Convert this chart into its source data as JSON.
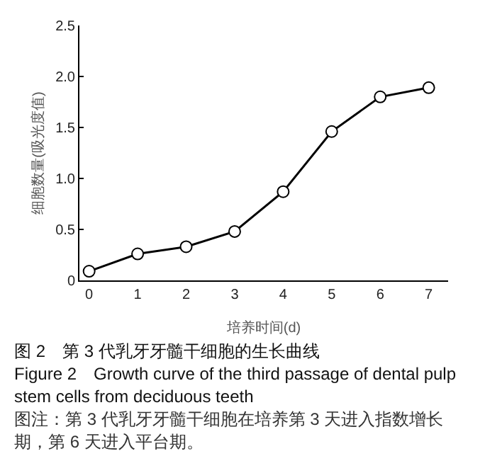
{
  "chart_data": {
    "type": "line",
    "title": "图 2　第 3 代乳牙牙髓干细胞的生长曲线",
    "subtitle": "Figure 2　Growth curve of the third passage of dental pulp stem cells from deciduous teeth",
    "annotations": [
      "图注：第 3 代乳牙牙髓干细胞在培养第 3 天进入指数增长期，第 6 天进入平台期。"
    ],
    "xlabel": "培养时间(d)",
    "ylabel": "细胞数量(吸光度值)",
    "x": [
      0,
      1,
      2,
      3,
      4,
      5,
      6,
      7
    ],
    "series": [
      {
        "color": "#000000",
        "values": [
          0.09,
          0.26,
          0.33,
          0.48,
          0.87,
          1.46,
          1.8,
          1.89
        ]
      }
    ],
    "xlim": [
      -0.2,
      7.4
    ],
    "xticks": [
      0,
      1,
      2,
      3,
      4,
      5,
      6,
      7
    ],
    "ylim": [
      0,
      2.5
    ],
    "yticks": [
      0,
      {
        "value": 0.5,
        "label": "0.5"
      },
      {
        "value": 1,
        "label": "1.0"
      },
      {
        "value": 1.5,
        "label": "1.5"
      },
      {
        "value": 2,
        "label": "2.0"
      },
      {
        "value": 2.5,
        "label": "2.5"
      }
    ],
    "grid": false,
    "marker": "circle",
    "line_style": "solid"
  }
}
